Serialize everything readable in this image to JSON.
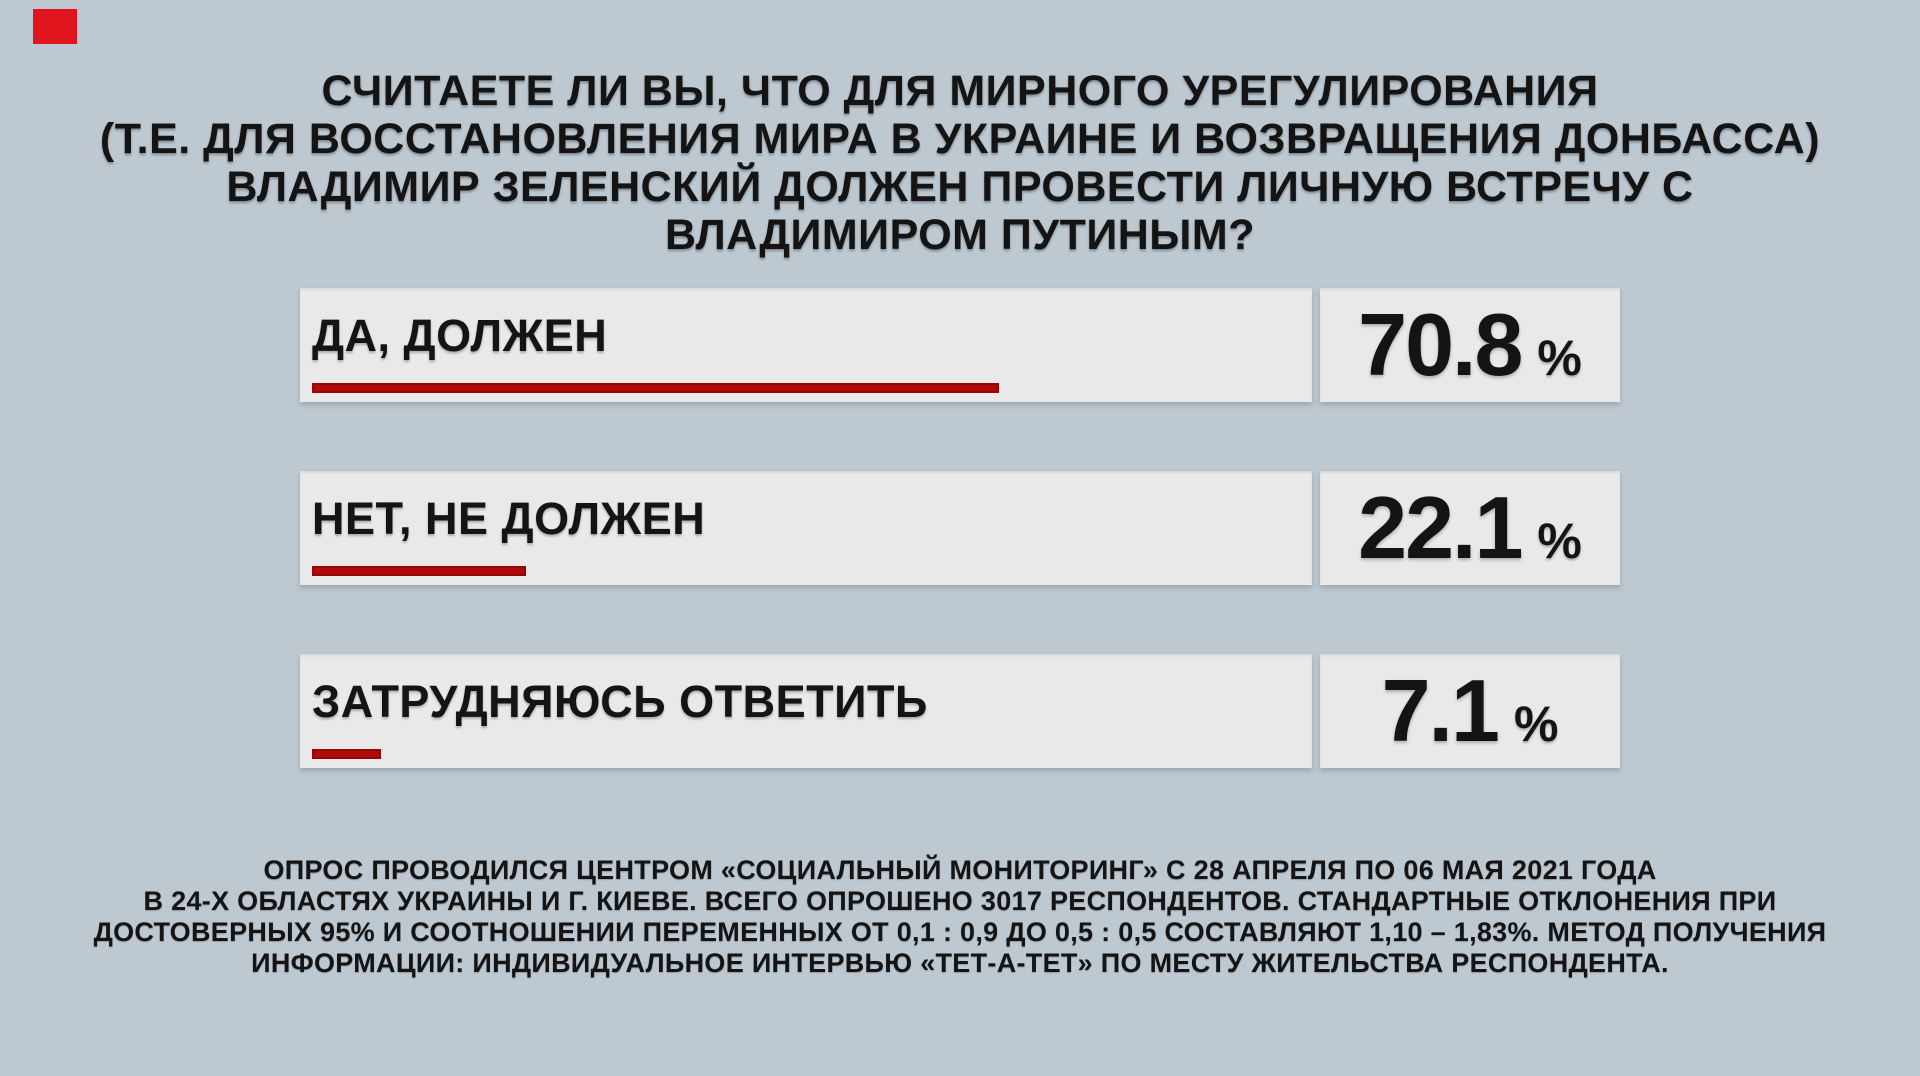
{
  "page": {
    "background": "#bdc8d1",
    "text_color": "#141414"
  },
  "brand": {
    "logo_color": "#e0151d"
  },
  "title": {
    "lines": [
      "СЧИТАЕТЕ ЛИ ВЫ, ЧТО ДЛЯ МИРНОГО УРЕГУЛИРОВАНИЯ",
      "(Т.Е. ДЛЯ ВОССТАНОВЛЕНИЯ МИРА В УКРАИНЕ И ВОЗВРАЩЕНИЯ ДОНБАССА)",
      "ВЛАДИМИР ЗЕЛЕНСКИЙ ДОЛЖЕН ПРОВЕСТИ ЛИЧНУЮ ВСТРЕЧУ С",
      "ВЛАДИМИРОМ ПУТИНЫМ?"
    ]
  },
  "chart_data": {
    "type": "bar",
    "orientation": "horizontal",
    "title": "СЧИТАЕТЕ ЛИ ВЫ, ЧТО ДЛЯ МИРНОГО УРЕГУЛИРОВАНИЯ (Т.Е. ДЛЯ ВОССТАНОВЛЕНИЯ МИРА В УКРАИНЕ И ВОЗВРАЩЕНИЯ ДОНБАССА) ВЛАДИМИР ЗЕЛЕНСКИЙ ДОЛЖЕН ПРОВЕСТИ ЛИЧНУЮ ВСТРЕЧУ С ВЛАДИМИРОМ ПУТИНЫМ?",
    "categories": [
      "ДА, ДОЛЖЕН",
      "НЕТ, НЕ ДОЛЖЕН",
      "ЗАТРУДНЯЮСЬ ОТВЕТИТЬ"
    ],
    "values": [
      70.8,
      22.1,
      7.1
    ],
    "value_labels": [
      "70.8",
      "22.1",
      "7.1"
    ],
    "unit": "%",
    "xlabel": "",
    "ylabel": "",
    "xlim": [
      0,
      100
    ],
    "grid": false,
    "legend": "none",
    "bar_color": "#b20909"
  },
  "footer": {
    "lines": [
      "ОПРОС ПРОВОДИЛСЯ ЦЕНТРОМ «СОЦИАЛЬНЫЙ МОНИТОРИНГ» С 28 АПРЕЛЯ ПО 06 МАЯ 2021 ГОДА",
      "В 24-Х ОБЛАСТЯХ УКРАИНЫ И Г. КИЕВЕ. ВСЕГО ОПРОШЕНО 3017 РЕСПОНДЕНТОВ. СТАНДАРТНЫЕ ОТКЛОНЕНИЯ ПРИ",
      "ДОСТОВЕРНЫХ 95% И СООТНОШЕНИИ ПЕРЕМЕННЫХ ОТ 0,1 : 0,9 ДО 0,5 : 0,5 СОСТАВЛЯЮТ 1,10 – 1,83%. МЕТОД ПОЛУЧЕНИЯ",
      "ИНФОРМАЦИИ: ИНДИВИДУАЛЬНОЕ ИНТЕРВЬЮ «ТЕТ-А-ТЕТ» ПО МЕСТУ ЖИТЕЛЬСТВА РЕСПОНДЕНТА."
    ]
  }
}
